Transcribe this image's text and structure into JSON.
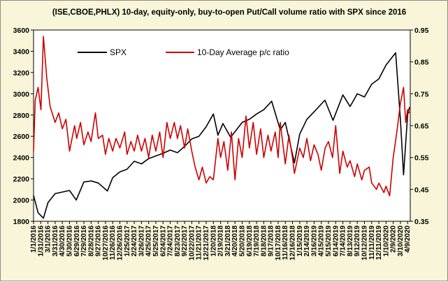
{
  "chart_data": {
    "type": "line",
    "title": "(ISE,CBOE,PHLX) 10-day, equity-only, buy-to-open Put/Call volume ratio with SPX since 2016",
    "xlabel": "",
    "ylabel_left": "",
    "ylabel_right": "",
    "y_left_lim": [
      1800,
      3600
    ],
    "y_right_lim": [
      0.35,
      0.95
    ],
    "y_left_ticks": [
      1800,
      2000,
      2200,
      2400,
      2600,
      2800,
      3000,
      3200,
      3400,
      3600
    ],
    "y_right_ticks": [
      "0.35",
      "0.45",
      "0.55",
      "0.65",
      "0.75",
      "0.85",
      "0.95"
    ],
    "x_ticks": [
      "1/1/2016",
      "1/31/2016",
      "3/1/2016",
      "3/31/2016",
      "4/30/2016",
      "5/30/2016",
      "6/29/2016",
      "7/29/2016",
      "8/28/2016",
      "9/27/2016",
      "10/27/2016",
      "11/26/2016",
      "12/26/2016",
      "1/25/2017",
      "2/24/2017",
      "3/26/2017",
      "4/25/2017",
      "5/25/2017",
      "6/24/2017",
      "7/24/2017",
      "8/23/2017",
      "9/22/2017",
      "10/22/2017",
      "11/21/2017",
      "12/21/2017",
      "1/20/2018",
      "2/19/2018",
      "3/21/2018",
      "4/20/2018",
      "5/20/2018",
      "6/19/2018",
      "7/19/2018",
      "8/18/2018",
      "9/17/2018",
      "10/17/2018",
      "11/16/2018",
      "12/16/2018",
      "1/15/2019",
      "2/14/2019",
      "3/16/2019",
      "4/15/2019",
      "5/15/2019",
      "6/14/2019",
      "7/14/2019",
      "8/13/2019",
      "9/12/2019",
      "10/12/2019",
      "11/11/2019",
      "12/11/2019",
      "1/10/2020",
      "2/9/2020",
      "3/10/2020",
      "4/9/2020"
    ],
    "grid": false,
    "legend_position": "top",
    "series": [
      {
        "name": "SPX",
        "axis": "left",
        "color": "#000000",
        "x": [
          "1/1/2016",
          "1/20/2016",
          "2/11/2016",
          "3/1/2016",
          "3/31/2016",
          "4/30/2016",
          "5/30/2016",
          "6/27/2016",
          "7/29/2016",
          "8/28/2016",
          "9/27/2016",
          "11/4/2016",
          "11/26/2016",
          "12/26/2016",
          "1/25/2017",
          "2/24/2017",
          "3/26/2017",
          "4/25/2017",
          "5/25/2017",
          "6/24/2017",
          "7/24/2017",
          "8/23/2017",
          "9/22/2017",
          "10/22/2017",
          "11/21/2017",
          "12/21/2017",
          "1/20/2018",
          "2/8/2018",
          "3/1/2018",
          "4/2/2018",
          "5/20/2018",
          "6/19/2018",
          "7/19/2018",
          "8/18/2018",
          "9/20/2018",
          "10/26/2018",
          "11/16/2018",
          "12/24/2018",
          "1/15/2019",
          "2/14/2019",
          "3/16/2019",
          "4/30/2019",
          "6/3/2019",
          "7/14/2019",
          "8/13/2019",
          "9/12/2019",
          "10/12/2019",
          "11/11/2019",
          "12/11/2019",
          "1/10/2020",
          "2/19/2020",
          "3/10/2020",
          "3/23/2020",
          "4/9/2020",
          "4/17/2020"
        ],
        "values": [
          2044,
          1880,
          1829,
          1975,
          2060,
          2075,
          2090,
          2000,
          2170,
          2180,
          2160,
          2085,
          2210,
          2265,
          2290,
          2365,
          2340,
          2390,
          2415,
          2440,
          2470,
          2445,
          2505,
          2575,
          2600,
          2690,
          2810,
          2610,
          2720,
          2590,
          2730,
          2760,
          2810,
          2850,
          2930,
          2660,
          2730,
          2350,
          2620,
          2760,
          2830,
          2940,
          2750,
          2990,
          2880,
          3000,
          2970,
          3090,
          3140,
          3270,
          3386,
          2760,
          2237,
          2800,
          2874
        ]
      },
      {
        "name": "10-Day Average p/c ratio",
        "axis": "right",
        "color": "#cc0000",
        "x": [
          "1/1/2016",
          "1/8/2016",
          "1/20/2016",
          "2/1/2016",
          "2/11/2016",
          "2/25/2016",
          "3/10/2016",
          "3/31/2016",
          "4/15/2016",
          "4/30/2016",
          "5/15/2016",
          "5/30/2016",
          "6/20/2016",
          "6/29/2016",
          "7/15/2016",
          "7/29/2016",
          "8/15/2016",
          "8/28/2016",
          "9/15/2016",
          "9/27/2016",
          "10/15/2016",
          "10/27/2016",
          "11/10/2016",
          "11/26/2016",
          "12/10/2016",
          "12/26/2016",
          "1/15/2017",
          "1/25/2017",
          "2/10/2017",
          "2/24/2017",
          "3/10/2017",
          "3/26/2017",
          "4/10/2017",
          "4/25/2017",
          "5/10/2017",
          "5/25/2017",
          "6/10/2017",
          "6/24/2017",
          "7/10/2017",
          "7/24/2017",
          "8/10/2017",
          "8/23/2017",
          "9/5/2017",
          "9/22/2017",
          "10/5/2017",
          "10/22/2017",
          "11/5/2017",
          "11/21/2017",
          "12/5/2017",
          "12/21/2017",
          "1/5/2018",
          "1/20/2018",
          "2/8/2018",
          "2/19/2018",
          "3/5/2018",
          "3/21/2018",
          "4/5/2018",
          "4/20/2018",
          "5/5/2018",
          "5/20/2018",
          "6/5/2018",
          "6/19/2018",
          "7/5/2018",
          "7/19/2018",
          "8/5/2018",
          "8/18/2018",
          "9/5/2018",
          "9/17/2018",
          "10/5/2018",
          "10/17/2018",
          "10/26/2018",
          "11/16/2018",
          "12/1/2018",
          "12/16/2018",
          "12/24/2018",
          "1/15/2019",
          "1/30/2019",
          "2/14/2019",
          "3/1/2019",
          "3/16/2019",
          "4/1/2019",
          "4/15/2019",
          "5/1/2019",
          "5/15/2019",
          "6/1/2019",
          "6/14/2019",
          "7/1/2019",
          "7/14/2019",
          "8/1/2019",
          "8/13/2019",
          "9/1/2019",
          "9/12/2019",
          "10/1/2019",
          "10/12/2019",
          "11/1/2019",
          "11/11/2019",
          "12/1/2019",
          "12/11/2019",
          "1/1/2020",
          "1/10/2020",
          "1/25/2020",
          "2/9/2020",
          "2/24/2020",
          "3/10/2020",
          "3/23/2020",
          "4/1/2020",
          "4/9/2020",
          "4/17/2020"
        ],
        "values": [
          0.57,
          0.73,
          0.77,
          0.7,
          0.93,
          0.8,
          0.71,
          0.66,
          0.69,
          0.64,
          0.67,
          0.57,
          0.65,
          0.61,
          0.66,
          0.59,
          0.63,
          0.6,
          0.69,
          0.61,
          0.62,
          0.56,
          0.61,
          0.57,
          0.61,
          0.58,
          0.63,
          0.56,
          0.6,
          0.57,
          0.62,
          0.57,
          0.61,
          0.55,
          0.62,
          0.57,
          0.63,
          0.55,
          0.66,
          0.61,
          0.66,
          0.61,
          0.65,
          0.58,
          0.64,
          0.57,
          0.52,
          0.48,
          0.52,
          0.47,
          0.49,
          0.48,
          0.61,
          0.55,
          0.6,
          0.51,
          0.63,
          0.48,
          0.61,
          0.55,
          0.68,
          0.58,
          0.66,
          0.56,
          0.64,
          0.55,
          0.62,
          0.57,
          0.63,
          0.55,
          0.66,
          0.53,
          0.62,
          0.55,
          0.5,
          0.58,
          0.55,
          0.61,
          0.54,
          0.59,
          0.56,
          0.51,
          0.58,
          0.6,
          0.55,
          0.65,
          0.5,
          0.57,
          0.52,
          0.54,
          0.49,
          0.53,
          0.48,
          0.51,
          0.52,
          0.47,
          0.45,
          0.47,
          0.44,
          0.46,
          0.43,
          0.55,
          0.63,
          0.72,
          0.77,
          0.66,
          0.7,
          0.69
        ]
      }
    ]
  }
}
